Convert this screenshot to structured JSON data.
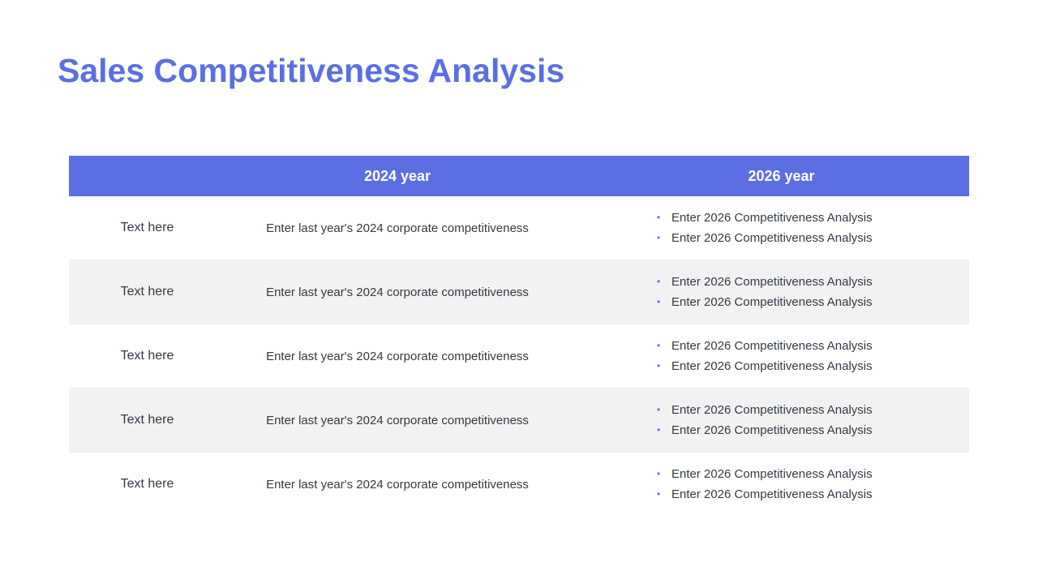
{
  "slide": {
    "title": "Sales Competitiveness Analysis"
  },
  "colors": {
    "accent": "#5b6fe3",
    "row_alt": "#f2f2f2",
    "text": "#333a45",
    "header_text": "#ffffff"
  },
  "table": {
    "headers": [
      "",
      "2024 year",
      "2026 year"
    ],
    "rows": [
      {
        "label": "Text  here",
        "y2024": "Enter last year's 2024 corporate  competitiveness",
        "y2026": [
          "Enter 2026 Competitiveness Analysis",
          "Enter 2026 Competitiveness Analysis"
        ]
      },
      {
        "label": "Text  here",
        "y2024": "Enter last year's 2024 corporate  competitiveness",
        "y2026": [
          "Enter 2026 Competitiveness Analysis",
          "Enter 2026 Competitiveness Analysis"
        ]
      },
      {
        "label": "Text  here",
        "y2024": "Enter last year's 2024 corporate  competitiveness",
        "y2026": [
          "Enter 2026 Competitiveness Analysis",
          "Enter 2026 Competitiveness Analysis"
        ]
      },
      {
        "label": "Text  here",
        "y2024": "Enter last year's 2024 corporate  competitiveness",
        "y2026": [
          "Enter 2026 Competitiveness Analysis",
          "Enter 2026 Competitiveness Analysis"
        ]
      },
      {
        "label": "Text  here",
        "y2024": "Enter last year's 2024 corporate  competitiveness",
        "y2026": [
          "Enter 2026 Competitiveness Analysis",
          "Enter 2026 Competitiveness Analysis"
        ]
      }
    ]
  }
}
